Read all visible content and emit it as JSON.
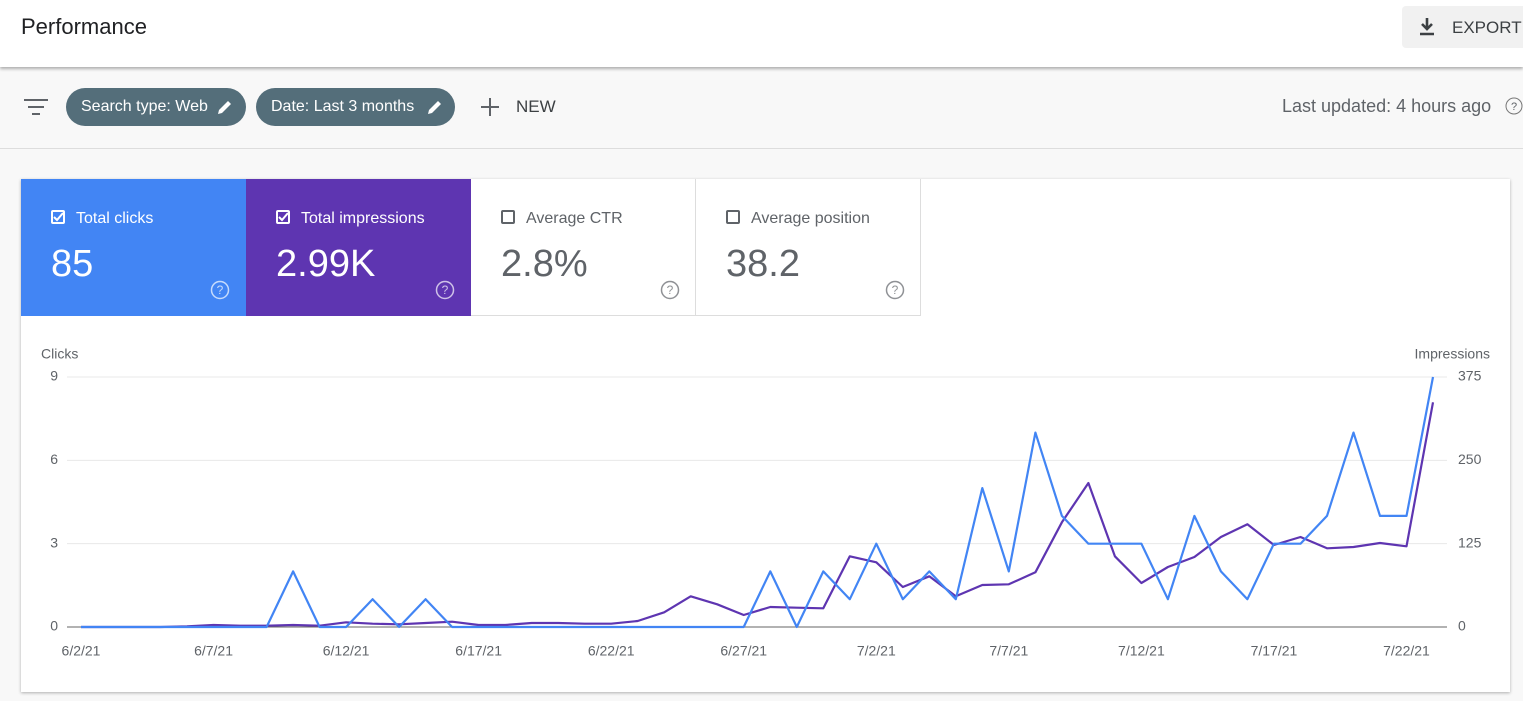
{
  "header": {
    "title": "Performance",
    "export": "EXPORT"
  },
  "filters": {
    "chips": [
      "Search type: Web",
      "Date: Last 3 months"
    ],
    "new": "NEW",
    "last_updated": "Last updated: 4 hours ago"
  },
  "metrics": [
    {
      "label": "Total clicks",
      "value": "85",
      "checked": true,
      "color": "#4285f4"
    },
    {
      "label": "Total impressions",
      "value": "2.99K",
      "checked": true,
      "color": "#5e35b1"
    },
    {
      "label": "Average CTR",
      "value": "2.8%",
      "checked": false,
      "color": "#00897b"
    },
    {
      "label": "Average position",
      "value": "38.2",
      "checked": false,
      "color": "#e8710a"
    }
  ],
  "chart_data": {
    "type": "line",
    "y_label": "Clicks",
    "y2_label": "Impressions",
    "categories": [
      "6/2/21",
      null,
      null,
      null,
      null,
      "6/7/21",
      null,
      null,
      null,
      null,
      "6/12/21",
      null,
      null,
      null,
      null,
      "6/17/21",
      null,
      null,
      null,
      null,
      "6/22/21",
      null,
      null,
      null,
      null,
      "6/27/21",
      null,
      null,
      null,
      null,
      "7/2/21",
      null,
      null,
      null,
      null,
      "7/7/21",
      null,
      null,
      null,
      null,
      "7/12/21",
      null,
      null,
      null,
      null,
      "7/17/21",
      null,
      null,
      null,
      null,
      "7/22/21",
      null
    ],
    "series": [
      {
        "color": "#4285f4",
        "axis": "y",
        "values": [
          0,
          0,
          0,
          0,
          0,
          0,
          0,
          0,
          2,
          0,
          0,
          1,
          0,
          1,
          0,
          0,
          0,
          0,
          0,
          0,
          0,
          0,
          0,
          0,
          0,
          0,
          2,
          0,
          2,
          1,
          3,
          1,
          2,
          1,
          5,
          2,
          7,
          4,
          3,
          3,
          3,
          1,
          4,
          2,
          1,
          3,
          3,
          4,
          7,
          4,
          4,
          9
        ]
      },
      {
        "color": "#5e35b1",
        "axis": "y2",
        "values": [
          0,
          0,
          0,
          0,
          1,
          3,
          2,
          2,
          3,
          2,
          7,
          5,
          4,
          6,
          8,
          3,
          3,
          6,
          6,
          5,
          5,
          9,
          22,
          46,
          34,
          18,
          30,
          29,
          28,
          106,
          97,
          60,
          76,
          46,
          63,
          64,
          82,
          157,
          216,
          106,
          66,
          90,
          105,
          135,
          154,
          123,
          135,
          118,
          120,
          126,
          121,
          337
        ]
      }
    ],
    "ylim": [
      0,
      9
    ],
    "yticks": [
      0,
      3,
      6,
      9
    ],
    "y2lim": [
      0,
      375
    ],
    "y2ticks": [
      0,
      125,
      250,
      375
    ],
    "grid": true
  }
}
